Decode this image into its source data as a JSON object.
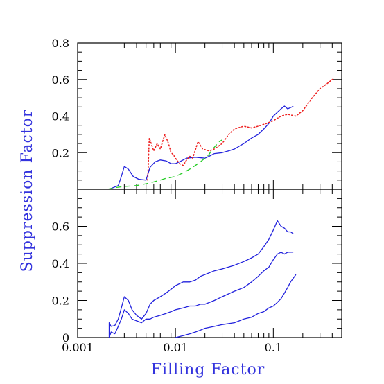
{
  "colors": {
    "axis_title": "#3333dd",
    "frame": "#000000",
    "blue_series": "#2222dd",
    "red_series": "#ee2222",
    "green_series": "#22cc22"
  },
  "chart_data": {
    "type": "line",
    "xlabel": "Filling Factor",
    "ylabel": "Suppression Factor",
    "x_scale": "log",
    "xlim": [
      0.001,
      0.5
    ],
    "x_ticks": [
      {
        "value": 0.001,
        "label": "0.001"
      },
      {
        "value": 0.01,
        "label": "0.01"
      },
      {
        "value": 0.1,
        "label": "0.1"
      }
    ],
    "panels": [
      {
        "id": "top",
        "ylim": [
          0,
          0.8
        ],
        "y_ticks": [
          {
            "value": 0.2,
            "label": "0.2"
          },
          {
            "value": 0.4,
            "label": "0.4"
          },
          {
            "value": 0.6,
            "label": "0.6"
          },
          {
            "value": 0.8,
            "label": "0.8"
          }
        ],
        "series": [
          {
            "color": "#2222dd",
            "dash": "solid",
            "points": [
              [
                0.0021,
                0.0
              ],
              [
                0.0026,
                0.02
              ],
              [
                0.0028,
                0.07
              ],
              [
                0.003,
                0.125
              ],
              [
                0.0033,
                0.11
              ],
              [
                0.0037,
                0.07
              ],
              [
                0.0042,
                0.055
              ],
              [
                0.005,
                0.05
              ],
              [
                0.0055,
                0.12
              ],
              [
                0.0062,
                0.15
              ],
              [
                0.007,
                0.16
              ],
              [
                0.008,
                0.155
              ],
              [
                0.009,
                0.14
              ],
              [
                0.01,
                0.14
              ],
              [
                0.011,
                0.15
              ],
              [
                0.013,
                0.17
              ],
              [
                0.016,
                0.175
              ],
              [
                0.02,
                0.17
              ],
              [
                0.022,
                0.18
              ],
              [
                0.025,
                0.195
              ],
              [
                0.03,
                0.2
              ],
              [
                0.035,
                0.21
              ],
              [
                0.04,
                0.22
              ],
              [
                0.05,
                0.25
              ],
              [
                0.06,
                0.28
              ],
              [
                0.07,
                0.3
              ],
              [
                0.08,
                0.33
              ],
              [
                0.09,
                0.36
              ],
              [
                0.1,
                0.4
              ],
              [
                0.12,
                0.44
              ],
              [
                0.13,
                0.455
              ],
              [
                0.14,
                0.44
              ],
              [
                0.155,
                0.45
              ],
              [
                0.16,
                0.455
              ]
            ]
          },
          {
            "color": "#ee2222",
            "dash": "dotted",
            "points": [
              [
                0.0052,
                0.05
              ],
              [
                0.0054,
                0.28
              ],
              [
                0.006,
                0.21
              ],
              [
                0.0065,
                0.25
              ],
              [
                0.007,
                0.22
              ],
              [
                0.0078,
                0.3
              ],
              [
                0.0085,
                0.25
              ],
              [
                0.009,
                0.2
              ],
              [
                0.0095,
                0.19
              ],
              [
                0.01,
                0.17
              ],
              [
                0.011,
                0.14
              ],
              [
                0.012,
                0.13
              ],
              [
                0.013,
                0.16
              ],
              [
                0.014,
                0.18
              ],
              [
                0.015,
                0.17
              ],
              [
                0.017,
                0.26
              ],
              [
                0.019,
                0.22
              ],
              [
                0.022,
                0.21
              ],
              [
                0.025,
                0.22
              ],
              [
                0.03,
                0.25
              ],
              [
                0.035,
                0.3
              ],
              [
                0.04,
                0.33
              ],
              [
                0.05,
                0.345
              ],
              [
                0.06,
                0.335
              ],
              [
                0.07,
                0.345
              ],
              [
                0.085,
                0.36
              ],
              [
                0.1,
                0.375
              ],
              [
                0.12,
                0.4
              ],
              [
                0.14,
                0.41
              ],
              [
                0.17,
                0.4
              ],
              [
                0.2,
                0.43
              ],
              [
                0.25,
                0.5
              ],
              [
                0.3,
                0.55
              ],
              [
                0.35,
                0.575
              ],
              [
                0.4,
                0.6
              ],
              [
                0.42,
                0.605
              ]
            ]
          },
          {
            "color": "#22cc22",
            "dash": "dashed",
            "points": [
              [
                0.002,
                0.0
              ],
              [
                0.0025,
                0.01
              ],
              [
                0.003,
                0.015
              ],
              [
                0.004,
                0.02
              ],
              [
                0.005,
                0.03
              ],
              [
                0.006,
                0.04
              ],
              [
                0.007,
                0.05
              ],
              [
                0.008,
                0.06
              ],
              [
                0.009,
                0.065
              ],
              [
                0.01,
                0.07
              ],
              [
                0.012,
                0.09
              ],
              [
                0.014,
                0.11
              ],
              [
                0.016,
                0.13
              ],
              [
                0.018,
                0.15
              ],
              [
                0.02,
                0.17
              ],
              [
                0.022,
                0.19
              ],
              [
                0.024,
                0.22
              ],
              [
                0.026,
                0.24
              ],
              [
                0.028,
                0.26
              ],
              [
                0.03,
                0.27
              ]
            ]
          }
        ]
      },
      {
        "id": "bottom",
        "ylim": [
          0,
          0.8
        ],
        "y_ticks": [
          {
            "value": 0,
            "label": "0"
          },
          {
            "value": 0.2,
            "label": "0.2"
          },
          {
            "value": 0.4,
            "label": "0.4"
          },
          {
            "value": 0.6,
            "label": "0.6"
          }
        ],
        "series": [
          {
            "color": "#2222dd",
            "dash": "solid",
            "points": [
              [
                0.0021,
                0.0
              ],
              [
                0.0021,
                0.08
              ],
              [
                0.0022,
                0.06
              ],
              [
                0.0024,
                0.065
              ],
              [
                0.0026,
                0.1
              ],
              [
                0.0028,
                0.16
              ],
              [
                0.003,
                0.22
              ],
              [
                0.0033,
                0.2
              ],
              [
                0.0036,
                0.15
              ],
              [
                0.004,
                0.12
              ],
              [
                0.0045,
                0.1
              ],
              [
                0.005,
                0.13
              ],
              [
                0.0055,
                0.18
              ],
              [
                0.006,
                0.2
              ],
              [
                0.007,
                0.22
              ],
              [
                0.008,
                0.24
              ],
              [
                0.009,
                0.26
              ],
              [
                0.01,
                0.28
              ],
              [
                0.012,
                0.3
              ],
              [
                0.014,
                0.3
              ],
              [
                0.016,
                0.31
              ],
              [
                0.018,
                0.33
              ],
              [
                0.02,
                0.34
              ],
              [
                0.025,
                0.36
              ],
              [
                0.03,
                0.37
              ],
              [
                0.04,
                0.39
              ],
              [
                0.05,
                0.41
              ],
              [
                0.06,
                0.43
              ],
              [
                0.07,
                0.45
              ],
              [
                0.08,
                0.49
              ],
              [
                0.09,
                0.53
              ],
              [
                0.1,
                0.58
              ],
              [
                0.11,
                0.63
              ],
              [
                0.12,
                0.6
              ],
              [
                0.13,
                0.59
              ],
              [
                0.14,
                0.57
              ],
              [
                0.15,
                0.57
              ],
              [
                0.16,
                0.56
              ]
            ]
          },
          {
            "color": "#2222dd",
            "dash": "solid",
            "points": [
              [
                0.0021,
                0.0
              ],
              [
                0.0022,
                0.03
              ],
              [
                0.0024,
                0.02
              ],
              [
                0.0026,
                0.06
              ],
              [
                0.0028,
                0.1
              ],
              [
                0.003,
                0.15
              ],
              [
                0.0033,
                0.13
              ],
              [
                0.0036,
                0.1
              ],
              [
                0.004,
                0.09
              ],
              [
                0.0045,
                0.08
              ],
              [
                0.005,
                0.1
              ],
              [
                0.0055,
                0.1
              ],
              [
                0.006,
                0.11
              ],
              [
                0.007,
                0.12
              ],
              [
                0.008,
                0.13
              ],
              [
                0.009,
                0.14
              ],
              [
                0.01,
                0.15
              ],
              [
                0.012,
                0.16
              ],
              [
                0.014,
                0.17
              ],
              [
                0.016,
                0.17
              ],
              [
                0.018,
                0.18
              ],
              [
                0.02,
                0.18
              ],
              [
                0.025,
                0.2
              ],
              [
                0.03,
                0.22
              ],
              [
                0.04,
                0.25
              ],
              [
                0.05,
                0.27
              ],
              [
                0.06,
                0.3
              ],
              [
                0.07,
                0.33
              ],
              [
                0.08,
                0.36
              ],
              [
                0.09,
                0.38
              ],
              [
                0.1,
                0.42
              ],
              [
                0.11,
                0.45
              ],
              [
                0.12,
                0.46
              ],
              [
                0.13,
                0.45
              ],
              [
                0.14,
                0.46
              ],
              [
                0.16,
                0.46
              ]
            ]
          },
          {
            "color": "#2222dd",
            "dash": "solid",
            "points": [
              [
                0.01,
                0.0
              ],
              [
                0.012,
                0.01
              ],
              [
                0.014,
                0.02
              ],
              [
                0.016,
                0.03
              ],
              [
                0.018,
                0.04
              ],
              [
                0.02,
                0.05
              ],
              [
                0.025,
                0.06
              ],
              [
                0.03,
                0.07
              ],
              [
                0.04,
                0.08
              ],
              [
                0.05,
                0.1
              ],
              [
                0.06,
                0.11
              ],
              [
                0.07,
                0.13
              ],
              [
                0.08,
                0.14
              ],
              [
                0.09,
                0.16
              ],
              [
                0.1,
                0.17
              ],
              [
                0.11,
                0.19
              ],
              [
                0.12,
                0.21
              ],
              [
                0.13,
                0.24
              ],
              [
                0.14,
                0.27
              ],
              [
                0.15,
                0.3
              ],
              [
                0.16,
                0.32
              ],
              [
                0.17,
                0.34
              ]
            ]
          }
        ]
      }
    ]
  }
}
